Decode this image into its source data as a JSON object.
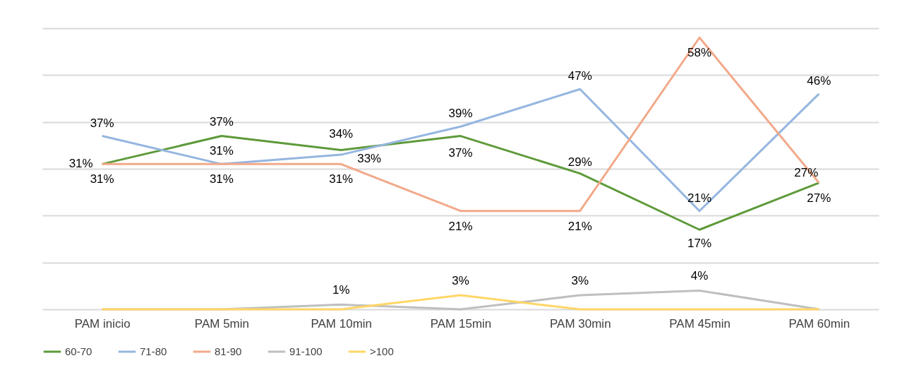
{
  "chart_data": {
    "type": "line",
    "categories": [
      "PAM inicio",
      "PAM 5min",
      "PAM 10min",
      "PAM 15min",
      "PAM 30min",
      "PAM 45min",
      "PAM 60min"
    ],
    "series": [
      {
        "name": "60-70",
        "color": "#5e9a3a",
        "values": [
          31,
          37,
          34,
          37,
          29,
          17,
          27
        ],
        "value_labels": [
          "31%",
          "37%",
          "34%",
          "37%",
          "29%",
          "17%",
          "27%"
        ]
      },
      {
        "name": "71-80",
        "color": "#95b6e0",
        "values": [
          37,
          31,
          33,
          39,
          47,
          21,
          46
        ],
        "value_labels": [
          "37%",
          "31%",
          "33%",
          "39%",
          "47%",
          "21%",
          "46%"
        ]
      },
      {
        "name": "81-90",
        "color": "#f2a98a",
        "values": [
          31,
          31,
          31,
          21,
          21,
          58,
          27
        ],
        "value_labels": [
          "31%",
          "31%",
          "31%",
          "21%",
          "21%",
          "58%",
          "27%"
        ]
      },
      {
        "name": "91-100",
        "color": "#bfbfbf",
        "values": [
          0,
          0,
          1,
          0,
          3,
          4,
          0
        ],
        "value_labels": [
          null,
          null,
          "1%",
          null,
          "3%",
          "4%",
          null
        ]
      },
      {
        "name": ">100",
        "color": "#ffd666",
        "values": [
          0,
          0,
          0,
          3,
          0,
          0,
          0
        ],
        "value_labels": [
          null,
          null,
          null,
          "3%",
          null,
          null,
          null
        ]
      }
    ],
    "ylim": [
      0,
      60
    ],
    "yticks": [
      {
        "value": 0,
        "label": null
      },
      {
        "value": 10,
        "label": null
      },
      {
        "value": 20,
        "label": null
      },
      {
        "value": 30,
        "label": null
      },
      {
        "value": 40,
        "label": null
      },
      {
        "value": 50,
        "label": null
      },
      {
        "value": 60,
        "label": null
      }
    ],
    "tick_labels": "x",
    "grid": "y",
    "legend": "bottom",
    "marker": "none",
    "line_style": "solid"
  }
}
